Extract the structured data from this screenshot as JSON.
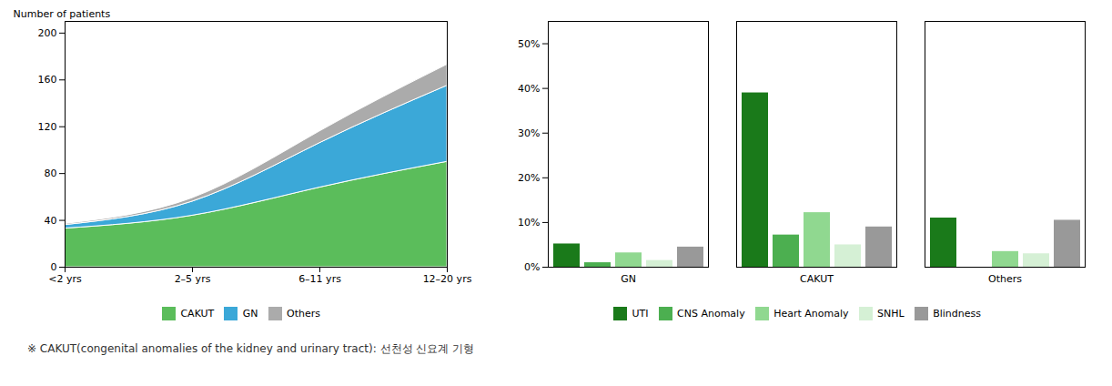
{
  "chart_data": [
    {
      "type": "area",
      "stacked": true,
      "categories": [
        "<2 yrs",
        "2–5 yrs",
        "6–11 yrs",
        "12–20 yrs"
      ],
      "series": [
        {
          "name": "CAKUT",
          "color": "#5BBD5B",
          "values": [
            33,
            44,
            68,
            90
          ]
        },
        {
          "name": "GN",
          "color": "#3BA8D8",
          "values": [
            3,
            12,
            38,
            65
          ]
        },
        {
          "name": "Others",
          "color": "#ABABAB",
          "values": [
            1,
            3,
            10,
            18
          ]
        }
      ],
      "ylabel": "Number of patients",
      "ylim": [
        0,
        210
      ],
      "yticks": [
        0,
        40,
        80,
        120,
        160,
        200
      ],
      "grid": false,
      "legend": "bottom"
    },
    {
      "type": "bar",
      "categories": [
        "GN",
        "CAKUT",
        "Others"
      ],
      "series": [
        {
          "name": "UTI",
          "color": "#1A7A1A",
          "values": [
            5.2,
            39.0,
            11.0
          ]
        },
        {
          "name": "CNS Anomaly",
          "color": "#4CAF50",
          "values": [
            1.0,
            7.2,
            0.0
          ]
        },
        {
          "name": "Heart Anomaly",
          "color": "#90D890",
          "values": [
            3.2,
            12.2,
            3.5
          ]
        },
        {
          "name": "SNHL",
          "color": "#D5F0D5",
          "values": [
            1.5,
            5.0,
            3.0
          ]
        },
        {
          "name": "Blindness",
          "color": "#999999",
          "values": [
            4.5,
            9.0,
            10.5
          ]
        }
      ],
      "ylim": [
        0,
        55
      ],
      "yticks": [
        {
          "value": 0,
          "label": "0%"
        },
        {
          "value": 10,
          "label": "10%"
        },
        {
          "value": 20,
          "label": "20%"
        },
        {
          "value": 30,
          "label": "30%"
        },
        {
          "value": 40,
          "label": "40%"
        },
        {
          "value": 50,
          "label": "50%"
        }
      ],
      "grid": false,
      "legend": "bottom"
    }
  ],
  "caption": "※ CAKUT(congenital anomalies of the kidney and urinary tract): 선천성 신요계 기형"
}
